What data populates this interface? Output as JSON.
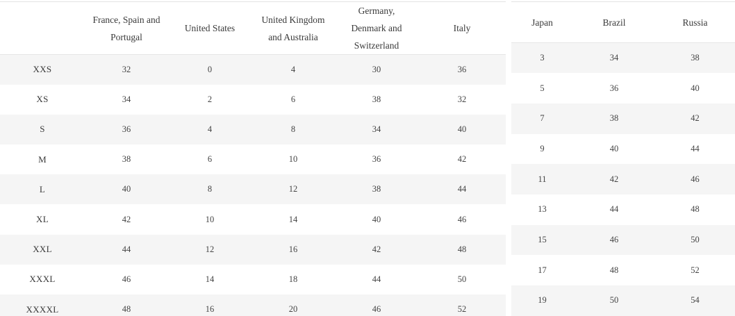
{
  "left_table": {
    "headers": [
      "",
      "France, Spain and Portugal",
      "United States",
      "United Kingdom and Australia",
      "Germany, Denmark and Switzerland",
      "Italy"
    ],
    "rows": [
      {
        "label": "XXS",
        "values": [
          "32",
          "0",
          "4",
          "30",
          "36"
        ]
      },
      {
        "label": "XS",
        "values": [
          "34",
          "2",
          "6",
          "38",
          "32"
        ]
      },
      {
        "label": "S",
        "values": [
          "36",
          "4",
          "8",
          "34",
          "40"
        ]
      },
      {
        "label": "M",
        "values": [
          "38",
          "6",
          "10",
          "36",
          "42"
        ]
      },
      {
        "label": "L",
        "values": [
          "40",
          "8",
          "12",
          "38",
          "44"
        ]
      },
      {
        "label": "XL",
        "values": [
          "42",
          "10",
          "14",
          "40",
          "46"
        ]
      },
      {
        "label": "XXL",
        "values": [
          "44",
          "12",
          "16",
          "42",
          "48"
        ]
      },
      {
        "label": "XXXL",
        "values": [
          "46",
          "14",
          "18",
          "44",
          "50"
        ]
      },
      {
        "label": "XXXXL",
        "values": [
          "48",
          "16",
          "20",
          "46",
          "52"
        ]
      }
    ]
  },
  "right_table": {
    "headers": [
      "Japan",
      "Brazil",
      "Russia"
    ],
    "rows": [
      {
        "values": [
          "3",
          "34",
          "38"
        ]
      },
      {
        "values": [
          "5",
          "36",
          "40"
        ]
      },
      {
        "values": [
          "7",
          "38",
          "42"
        ]
      },
      {
        "values": [
          "9",
          "40",
          "44"
        ]
      },
      {
        "values": [
          "11",
          "42",
          "46"
        ]
      },
      {
        "values": [
          "13",
          "44",
          "48"
        ]
      },
      {
        "values": [
          "15",
          "46",
          "50"
        ]
      },
      {
        "values": [
          "17",
          "48",
          "52"
        ]
      },
      {
        "values": [
          "19",
          "50",
          "54"
        ]
      }
    ]
  },
  "colors": {
    "stripe": "#f5f5f5",
    "border": "#e3e3e3",
    "text": "#3e3e3e"
  }
}
